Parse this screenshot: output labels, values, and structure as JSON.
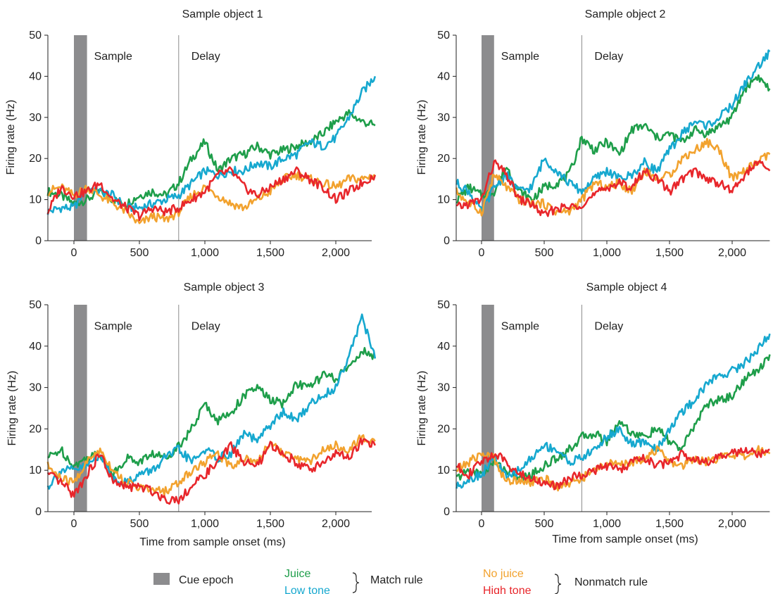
{
  "legend": {
    "cue_epoch": "Cue epoch",
    "juice": "Juice",
    "low_tone": "Low tone",
    "match_rule": "Match rule",
    "no_juice": "No juice",
    "high_tone": "High tone",
    "nonmatch_rule": "Nonmatch rule"
  },
  "colors": {
    "juice": "#1e9e4a",
    "low_tone": "#16a8cf",
    "no_juice": "#f2a22e",
    "high_tone": "#e8262b",
    "cue_epoch": "#8c8c8e",
    "axis": "#222222"
  },
  "chart_data": [
    {
      "type": "line",
      "title": "Sample object 1",
      "xlabel": "",
      "ylabel": "Firing rate (Hz)",
      "xlim": [
        -200,
        2300
      ],
      "ylim": [
        0,
        50
      ],
      "xticks": [
        0,
        500,
        1000,
        1500,
        2000
      ],
      "xtick_labels": [
        "0",
        "500",
        "1,000",
        "1,500",
        "2,000"
      ],
      "yticks": [
        0,
        10,
        20,
        30,
        40,
        50
      ],
      "cue_epoch": [
        0,
        100
      ],
      "delay_onset": 800,
      "epoch_labels": [
        "Sample",
        "Delay"
      ],
      "x": [
        -200,
        -100,
        0,
        100,
        200,
        300,
        400,
        500,
        600,
        700,
        800,
        900,
        1000,
        1100,
        1200,
        1300,
        1400,
        1500,
        1600,
        1700,
        1800,
        1900,
        2000,
        2100,
        2200,
        2300
      ],
      "series": [
        {
          "key": "juice",
          "values": [
            12,
            11,
            9,
            10,
            12,
            10,
            9,
            11,
            12,
            11,
            14,
            20,
            24,
            17,
            20,
            21,
            23,
            21,
            22,
            23,
            24,
            26,
            29,
            31,
            29,
            28
          ]
        },
        {
          "key": "low_tone",
          "values": [
            7,
            8,
            8,
            13,
            12,
            11,
            8,
            8,
            9,
            10,
            11,
            14,
            17,
            16,
            17,
            17,
            19,
            18,
            20,
            21,
            24,
            23,
            25,
            30,
            36,
            40
          ]
        },
        {
          "key": "no_juice",
          "values": [
            12,
            13,
            11,
            13,
            11,
            9,
            7,
            4,
            6,
            5,
            7,
            11,
            13,
            11,
            9,
            8,
            10,
            12,
            15,
            16,
            15,
            14,
            13,
            15,
            15,
            16
          ]
        },
        {
          "key": "high_tone",
          "values": [
            7,
            13,
            11,
            12,
            14,
            10,
            8,
            6,
            8,
            7,
            8,
            10,
            12,
            16,
            17,
            13,
            11,
            13,
            15,
            17,
            15,
            13,
            10,
            12,
            14,
            16
          ]
        }
      ]
    },
    {
      "type": "line",
      "title": "Sample object 2",
      "xlabel": "",
      "ylabel": "Firing rate (Hz)",
      "xlim": [
        -200,
        2300
      ],
      "ylim": [
        0,
        50
      ],
      "xticks": [
        0,
        500,
        1000,
        1500,
        2000
      ],
      "xtick_labels": [
        "0",
        "500",
        "1,000",
        "1,500",
        "2,000"
      ],
      "yticks": [
        0,
        10,
        20,
        30,
        40,
        50
      ],
      "cue_epoch": [
        0,
        100
      ],
      "delay_onset": 800,
      "epoch_labels": [
        "Sample",
        "Delay"
      ],
      "x": [
        -200,
        -100,
        0,
        100,
        200,
        300,
        400,
        500,
        600,
        700,
        800,
        900,
        1000,
        1100,
        1200,
        1300,
        1400,
        1500,
        1600,
        1700,
        1800,
        1900,
        2000,
        2100,
        2200,
        2300
      ],
      "series": [
        {
          "key": "juice",
          "values": [
            10,
            13,
            11,
            12,
            18,
            12,
            10,
            13,
            14,
            16,
            25,
            22,
            24,
            21,
            27,
            28,
            25,
            26,
            24,
            27,
            26,
            28,
            30,
            37,
            40,
            37
          ]
        },
        {
          "key": "low_tone",
          "values": [
            14,
            12,
            7,
            13,
            16,
            12,
            13,
            20,
            17,
            14,
            12,
            15,
            17,
            15,
            16,
            19,
            17,
            22,
            26,
            29,
            28,
            30,
            33,
            38,
            42,
            46
          ]
        },
        {
          "key": "no_juice",
          "values": [
            12,
            9,
            7,
            16,
            13,
            10,
            9,
            9,
            7,
            7,
            10,
            14,
            13,
            14,
            12,
            17,
            15,
            16,
            20,
            22,
            24,
            22,
            15,
            17,
            19,
            21
          ]
        },
        {
          "key": "high_tone",
          "values": [
            8,
            9,
            10,
            19,
            16,
            10,
            9,
            6,
            8,
            8,
            9,
            11,
            13,
            14,
            13,
            17,
            15,
            12,
            15,
            17,
            15,
            14,
            12,
            16,
            19,
            17
          ]
        }
      ]
    },
    {
      "type": "line",
      "title": "Sample object 3",
      "xlabel": "Time from sample onset (ms)",
      "ylabel": "Firing rate (Hz)",
      "xlim": [
        -200,
        2300
      ],
      "ylim": [
        0,
        50
      ],
      "xticks": [
        0,
        500,
        1000,
        1500,
        2000
      ],
      "xtick_labels": [
        "0",
        "500",
        "1,000",
        "1,500",
        "2,000"
      ],
      "yticks": [
        0,
        10,
        20,
        30,
        40,
        50
      ],
      "cue_epoch": [
        0,
        100
      ],
      "delay_onset": 800,
      "epoch_labels": [
        "Sample",
        "Delay"
      ],
      "x": [
        -200,
        -100,
        0,
        100,
        200,
        300,
        400,
        500,
        600,
        700,
        800,
        900,
        1000,
        1100,
        1200,
        1300,
        1400,
        1500,
        1600,
        1700,
        1800,
        1900,
        2000,
        2100,
        2200,
        2300
      ],
      "series": [
        {
          "key": "juice",
          "values": [
            13,
            15,
            11,
            13,
            14,
            9,
            13,
            12,
            14,
            13,
            16,
            20,
            26,
            22,
            24,
            28,
            30,
            27,
            26,
            31,
            30,
            33,
            32,
            35,
            39,
            37
          ]
        },
        {
          "key": "low_tone",
          "values": [
            6,
            10,
            10,
            11,
            14,
            8,
            7,
            9,
            10,
            13,
            15,
            12,
            15,
            13,
            14,
            19,
            17,
            21,
            24,
            22,
            26,
            28,
            30,
            38,
            47,
            37
          ]
        },
        {
          "key": "no_juice",
          "values": [
            11,
            8,
            7,
            12,
            15,
            10,
            7,
            6,
            5,
            5,
            7,
            10,
            12,
            14,
            11,
            13,
            12,
            17,
            14,
            13,
            12,
            15,
            16,
            15,
            18,
            17
          ]
        },
        {
          "key": "high_tone",
          "values": [
            9,
            7,
            4,
            9,
            14,
            7,
            6,
            6,
            5,
            3,
            3,
            6,
            9,
            12,
            16,
            12,
            11,
            16,
            14,
            12,
            10,
            12,
            14,
            13,
            17,
            16
          ]
        }
      ]
    },
    {
      "type": "line",
      "title": "Sample object 4",
      "xlabel": "Time from sample onset (ms)",
      "ylabel": "Firing rate (Hz)",
      "xlim": [
        -200,
        2300
      ],
      "ylim": [
        0,
        50
      ],
      "xticks": [
        0,
        500,
        1000,
        1500,
        2000
      ],
      "xtick_labels": [
        "0",
        "500",
        "1,000",
        "1,500",
        "2,000"
      ],
      "yticks": [
        0,
        10,
        20,
        30,
        40,
        50
      ],
      "cue_epoch": [
        0,
        100
      ],
      "delay_onset": 800,
      "epoch_labels": [
        "Sample",
        "Delay"
      ],
      "x": [
        -200,
        -100,
        0,
        100,
        200,
        300,
        400,
        500,
        600,
        700,
        800,
        900,
        1000,
        1100,
        1200,
        1300,
        1400,
        1500,
        1600,
        1700,
        1800,
        1900,
        2000,
        2100,
        2200,
        2300
      ],
      "series": [
        {
          "key": "juice",
          "values": [
            8,
            10,
            9,
            12,
            10,
            8,
            9,
            11,
            13,
            15,
            18,
            19,
            17,
            22,
            19,
            18,
            20,
            17,
            15,
            21,
            26,
            27,
            28,
            32,
            34,
            38
          ]
        },
        {
          "key": "low_tone",
          "values": [
            6,
            8,
            9,
            13,
            8,
            10,
            13,
            16,
            15,
            12,
            13,
            15,
            18,
            20,
            16,
            17,
            15,
            20,
            24,
            27,
            31,
            33,
            34,
            36,
            39,
            43
          ]
        },
        {
          "key": "no_juice",
          "values": [
            10,
            12,
            14,
            13,
            7,
            8,
            7,
            8,
            6,
            7,
            8,
            10,
            12,
            11,
            12,
            13,
            15,
            12,
            11,
            13,
            12,
            13,
            14,
            13,
            15,
            14
          ]
        },
        {
          "key": "high_tone",
          "values": [
            11,
            9,
            12,
            14,
            12,
            9,
            8,
            7,
            6,
            8,
            9,
            10,
            11,
            10,
            12,
            13,
            11,
            12,
            14,
            13,
            12,
            13,
            14,
            15,
            14,
            15
          ]
        }
      ]
    }
  ]
}
